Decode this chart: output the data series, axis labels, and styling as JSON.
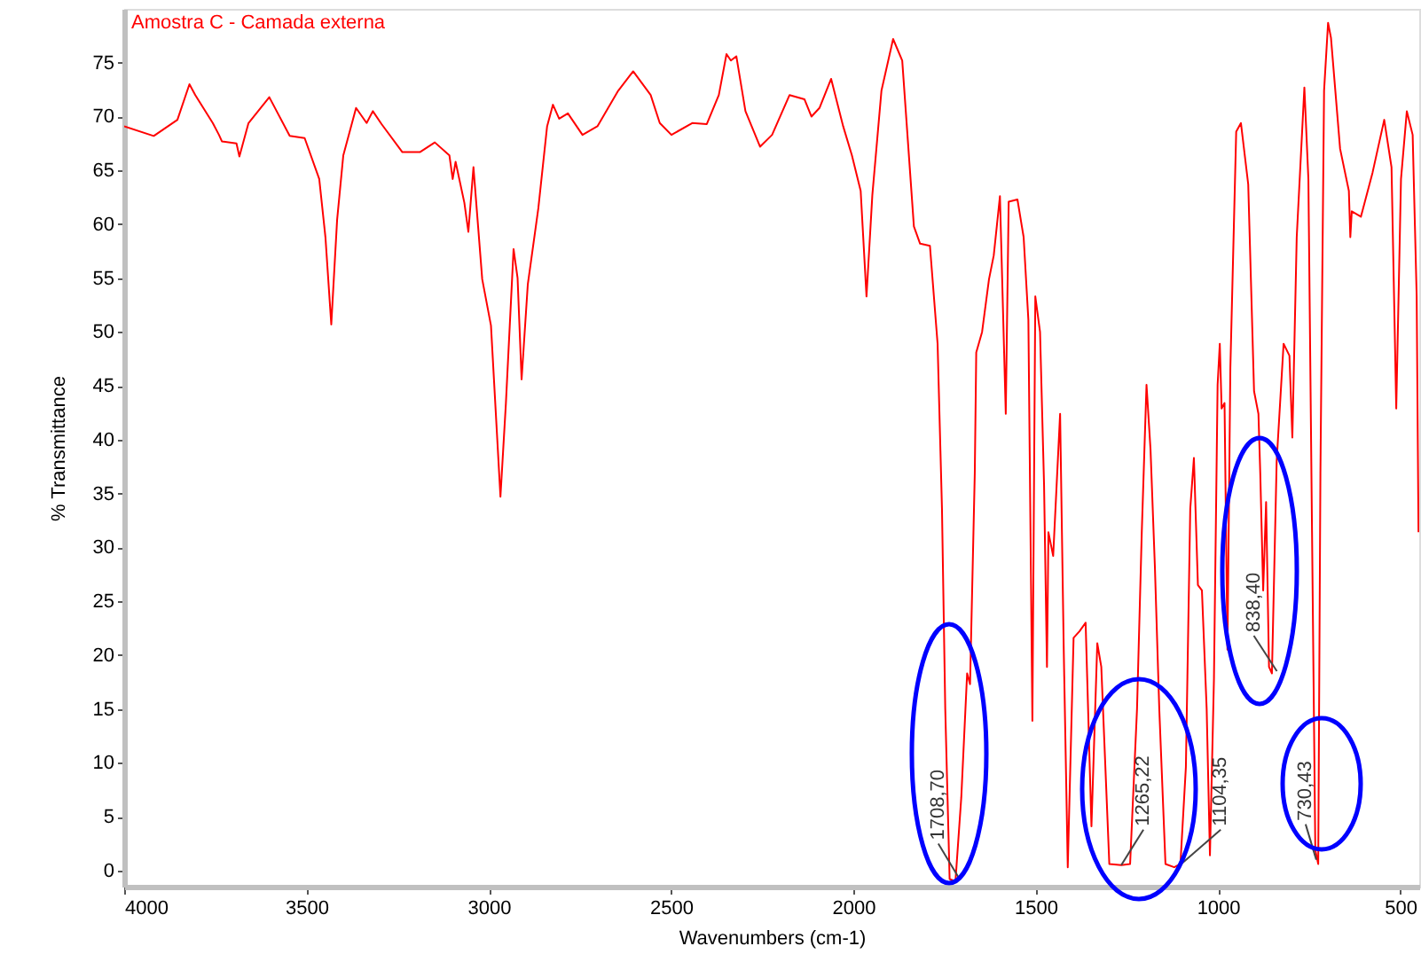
{
  "chart_data": {
    "type": "line",
    "xlabel": "Wavenumbers (cm-1)",
    "ylabel": "% Transmittance",
    "xlim": [
      4000,
      448
    ],
    "ylim": [
      -1.5,
      80
    ],
    "xticks": [
      4000,
      3500,
      3000,
      2500,
      2000,
      1500,
      1000,
      500
    ],
    "yticks": [
      0,
      5,
      10,
      15,
      20,
      25,
      30,
      35,
      40,
      45,
      50,
      55,
      60,
      65,
      70,
      75
    ],
    "grid": false,
    "legend": "top left",
    "marker": "none",
    "line_style": "solid",
    "series": [
      {
        "name": "Amostra C - Camada externa",
        "color": "#ff0000",
        "x": [
          4000,
          3919,
          3854,
          3821,
          3805,
          3757,
          3740,
          3732,
          3692,
          3684,
          3659,
          3602,
          3546,
          3505,
          3465,
          3448,
          3432,
          3416,
          3399,
          3364,
          3335,
          3318,
          3294,
          3237,
          3189,
          3148,
          3108,
          3099,
          3091,
          3067,
          3056,
          3042,
          3018,
          2994,
          2968,
          2953,
          2932,
          2921,
          2910,
          2893,
          2864,
          2840,
          2824,
          2807,
          2783,
          2743,
          2702,
          2645,
          2604,
          2556,
          2531,
          2499,
          2442,
          2402,
          2369,
          2348,
          2336,
          2321,
          2296,
          2256,
          2223,
          2175,
          2134,
          2115,
          2093,
          2061,
          2028,
          2004,
          1980,
          1964,
          1948,
          1923,
          1891,
          1866,
          1834,
          1817,
          1790,
          1769,
          1757,
          1748,
          1736,
          1720,
          1704,
          1688,
          1680,
          1667,
          1663,
          1647,
          1628,
          1615,
          1598,
          1582,
          1574,
          1550,
          1533,
          1520,
          1509,
          1501,
          1488,
          1477,
          1469,
          1465,
          1452,
          1433,
          1423,
          1412,
          1396,
          1380,
          1363,
          1347,
          1331,
          1320,
          1298,
          1265,
          1241,
          1222,
          1209,
          1196,
          1185,
          1173,
          1161,
          1144,
          1120,
          1103,
          1088,
          1076,
          1066,
          1055,
          1044,
          1031,
          1022,
          1011,
          1001,
          995,
          990,
          982,
          974,
          966,
          950,
          937,
          917,
          901,
          889,
          884,
          876,
          868,
          860,
          852,
          839,
          820,
          804,
          796,
          784,
          763,
          752,
          742,
          733,
          725,
          719,
          709,
          698,
          690,
          665,
          641,
          637,
          633,
          608,
          576,
          544,
          524,
          511,
          498,
          482,
          466,
          455,
          450
        ],
        "values": [
          69.1,
          68.2,
          69.7,
          73.0,
          72.0,
          69.4,
          68.3,
          67.7,
          67.5,
          66.3,
          69.4,
          71.8,
          68.2,
          68.0,
          64.2,
          58.8,
          50.7,
          60.4,
          66.4,
          70.8,
          69.4,
          70.5,
          69.3,
          66.7,
          66.7,
          67.6,
          66.4,
          64.2,
          65.8,
          62.0,
          59.3,
          65.3,
          54.9,
          50.6,
          34.7,
          43.4,
          57.7,
          55.0,
          45.6,
          54.4,
          61.5,
          69.1,
          71.1,
          69.8,
          70.3,
          68.3,
          69.1,
          72.4,
          74.2,
          72.0,
          69.4,
          68.3,
          69.4,
          69.3,
          72.0,
          75.8,
          75.2,
          75.6,
          70.5,
          67.2,
          68.3,
          72.0,
          71.6,
          70.0,
          70.8,
          73.5,
          69.1,
          66.4,
          63.1,
          53.3,
          62.7,
          72.4,
          77.2,
          75.2,
          59.8,
          58.2,
          58.0,
          48.9,
          33.6,
          15.0,
          -0.8,
          -1.0,
          6.8,
          18.3,
          17.3,
          36.9,
          48.1,
          50.0,
          54.9,
          57.1,
          62.6,
          42.4,
          62.1,
          62.3,
          58.8,
          51.1,
          13.9,
          53.3,
          50.0,
          35.8,
          18.9,
          31.4,
          29.2,
          42.4,
          20.5,
          0.3,
          21.6,
          22.2,
          23.0,
          4.1,
          21.1,
          18.9,
          0.6,
          0.5,
          0.6,
          15.0,
          31.4,
          45.1,
          39.1,
          28.2,
          15.0,
          0.6,
          0.3,
          0.6,
          9.6,
          33.6,
          38.3,
          26.5,
          26.0,
          15.0,
          1.4,
          17.8,
          45.1,
          48.9,
          42.9,
          43.4,
          20.5,
          46.7,
          68.6,
          69.4,
          63.7,
          44.5,
          42.4,
          36.9,
          26.0,
          34.2,
          18.9,
          18.3,
          38.0,
          48.9,
          47.8,
          40.2,
          58.8,
          72.7,
          64.2,
          31.4,
          1.9,
          0.6,
          36.9,
          72.4,
          78.7,
          77.3,
          67.0,
          63.1,
          58.8,
          61.2,
          60.7,
          64.8,
          69.7,
          65.3,
          42.9,
          64.2,
          70.5,
          68.3,
          53.3,
          31.4
        ]
      }
    ],
    "annotations": [
      {
        "text": "1708,70",
        "x": 1708.7,
        "y": -0.8
      },
      {
        "text": "1265,22",
        "x": 1265.22,
        "y": 0.5
      },
      {
        "text": "1104,35",
        "x": 1104.35,
        "y": 0.5
      },
      {
        "text": "838,40",
        "x": 838.4,
        "y": 18.5
      },
      {
        "text": "730,43",
        "x": 730.43,
        "y": 1.0
      }
    ]
  }
}
